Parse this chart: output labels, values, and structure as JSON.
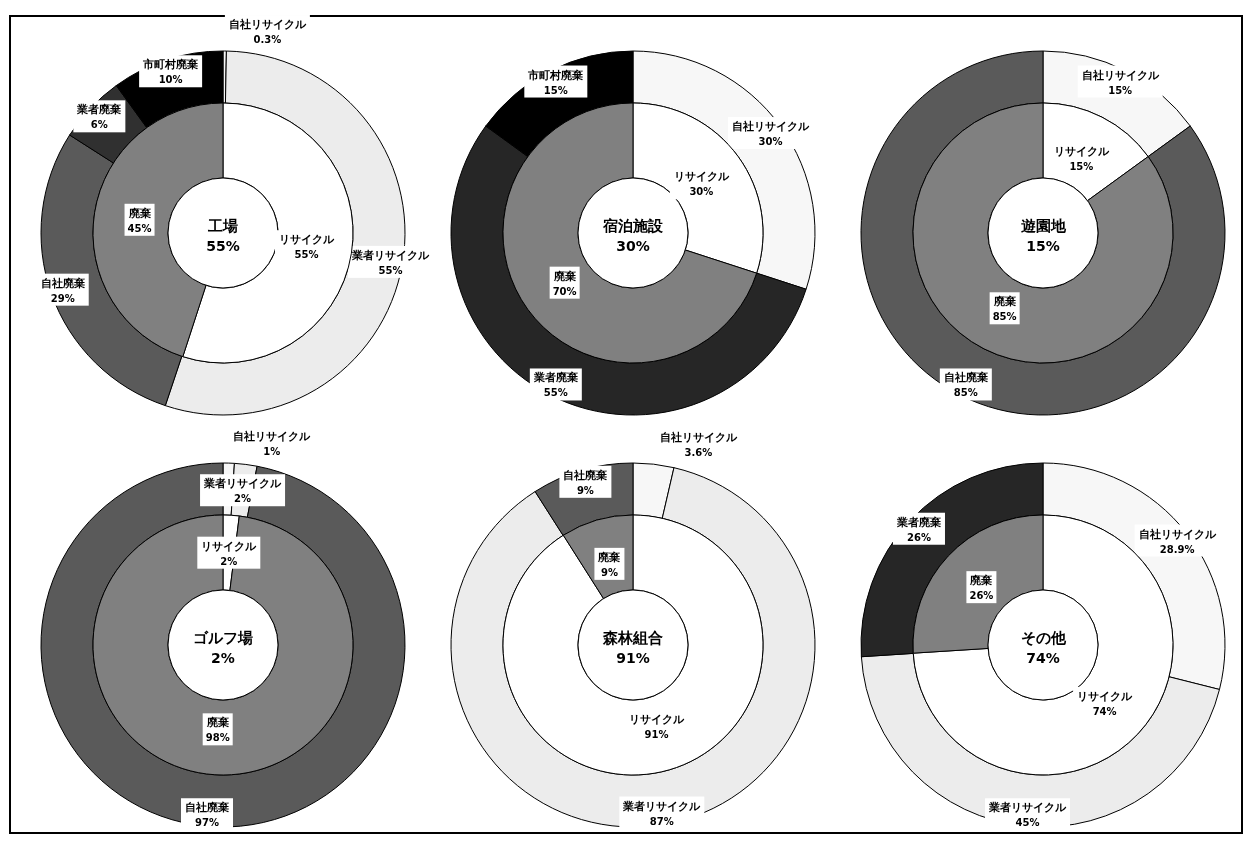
{
  "chart_data": [
    {
      "type": "donut",
      "title": "工場",
      "subtitle": "55%",
      "categories": [
        "リサイクル",
        "廃棄"
      ],
      "values": [
        55,
        45
      ],
      "colors": [
        "#ffffff",
        "#808080"
      ],
      "value_labels": [
        "55%",
        "45%"
      ]
    },
    {
      "type": "donut",
      "categories": [
        "自社リサイクル",
        "業者リサイクル",
        "自社廃棄",
        "業者廃棄",
        "市町村廃棄"
      ],
      "values": [
        0.3,
        55,
        29,
        6,
        10
      ],
      "colors": [
        "#f7f7f7",
        "#ececec",
        "#5a5a5a",
        "#303030",
        "#000000"
      ],
      "value_labels": [
        "0.3%",
        "55%",
        "29%",
        "6%",
        "10%"
      ]
    },
    {
      "type": "donut",
      "title": "宿泊施設",
      "subtitle": "30%",
      "categories": [
        "リサイクル",
        "廃棄"
      ],
      "values": [
        30,
        70
      ],
      "colors": [
        "#ffffff",
        "#808080"
      ],
      "value_labels": [
        "30%",
        "70%"
      ]
    },
    {
      "type": "donut",
      "categories": [
        "自社リサイクル",
        "業者廃棄",
        "市町村廃棄"
      ],
      "values": [
        30,
        55,
        15
      ],
      "colors": [
        "#f7f7f7",
        "#262626",
        "#000000"
      ],
      "value_labels": [
        "30%",
        "55%",
        "15%"
      ]
    },
    {
      "type": "donut",
      "title": "遊園地",
      "subtitle": "15%",
      "categories": [
        "リサイクル",
        "廃棄"
      ],
      "values": [
        15,
        85
      ],
      "colors": [
        "#ffffff",
        "#808080"
      ],
      "value_labels": [
        "15%",
        "85%"
      ]
    },
    {
      "type": "donut",
      "categories": [
        "自社リサイクル",
        "自社廃棄"
      ],
      "values": [
        15,
        85
      ],
      "colors": [
        "#f7f7f7",
        "#5a5a5a"
      ],
      "value_labels": [
        "15%",
        "85%"
      ]
    },
    {
      "type": "donut",
      "title": "ゴルフ場",
      "subtitle": "2%",
      "categories": [
        "リサイクル",
        "廃棄"
      ],
      "values": [
        2,
        98
      ],
      "colors": [
        "#ffffff",
        "#808080"
      ],
      "value_labels": [
        "2%",
        "98%"
      ]
    },
    {
      "type": "donut",
      "categories": [
        "自社リサイクル",
        "業者リサイクル",
        "自社廃棄"
      ],
      "values": [
        1,
        2,
        97
      ],
      "colors": [
        "#f7f7f7",
        "#ececec",
        "#5a5a5a"
      ],
      "value_labels": [
        "1%",
        "2%",
        "97%"
      ]
    },
    {
      "type": "donut",
      "title": "森林組合",
      "subtitle": "91%",
      "categories": [
        "リサイクル",
        "廃棄"
      ],
      "values": [
        91,
        9
      ],
      "colors": [
        "#ffffff",
        "#808080"
      ],
      "value_labels": [
        "91%",
        "9%"
      ]
    },
    {
      "type": "donut",
      "categories": [
        "自社リサイクル",
        "業者リサイクル",
        "自社廃棄"
      ],
      "values": [
        3.6,
        87,
        9
      ],
      "colors": [
        "#f7f7f7",
        "#ececec",
        "#5a5a5a"
      ],
      "value_labels": [
        "3.6%",
        "87%",
        "9%"
      ]
    },
    {
      "type": "donut",
      "title": "その他",
      "subtitle": "74%",
      "categories": [
        "リサイクル",
        "廃棄"
      ],
      "values": [
        74,
        26
      ],
      "colors": [
        "#ffffff",
        "#808080"
      ],
      "value_labels": [
        "74%",
        "26%"
      ]
    },
    {
      "type": "donut",
      "categories": [
        "自社リサイクル",
        "業者リサイクル",
        "業者廃棄"
      ],
      "values": [
        28.9,
        45,
        26
      ],
      "colors": [
        "#f7f7f7",
        "#ececec",
        "#262626"
      ],
      "value_labels": [
        "28.9%",
        "45%",
        "26%"
      ]
    }
  ]
}
